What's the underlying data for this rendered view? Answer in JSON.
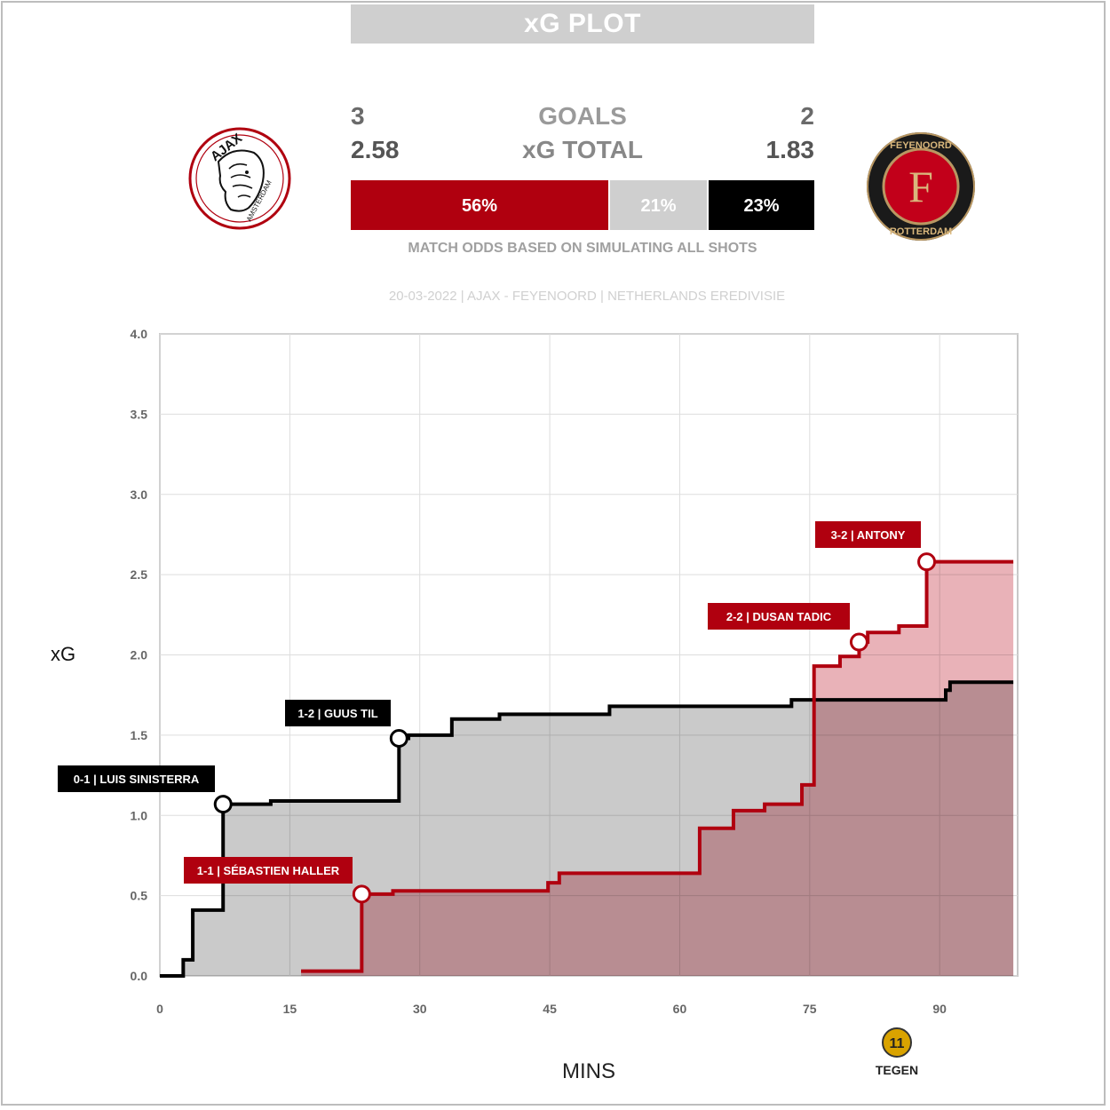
{
  "header": {
    "title": "xG PLOT"
  },
  "teams": {
    "home": {
      "name": "AJAX",
      "logo_text_top": "AJAX",
      "logo_text_ring": "AMSTERDAM",
      "goals": "3",
      "xg_total": "2.58",
      "color": "#b0000f"
    },
    "away": {
      "name": "FEYENOORD",
      "logo_text_top": "FEYENOORD",
      "logo_text_bottom": "ROTTERDAM",
      "logo_letter": "F",
      "goals": "2",
      "xg_total": "1.83",
      "color": "#000000"
    }
  },
  "labels": {
    "goals": "GOALS",
    "xg_total": "xG TOTAL"
  },
  "odds": {
    "home_win": "56%",
    "draw": "21%",
    "away_win": "23%",
    "home_value": 0.56,
    "draw_value": 0.21,
    "away_value": 0.23,
    "caption": "MATCH ODDS BASED ON SIMULATING ALL SHOTS"
  },
  "match_info": "20-03-2022 | AJAX - FEYENOORD | NETHERLANDS EREDIVISIE",
  "brand": {
    "name": "TEGEN",
    "mark": "11"
  },
  "chart_data": {
    "type": "line",
    "xlabel": "MINS",
    "ylabel": "xG",
    "xlim": [
      0,
      99
    ],
    "ylim": [
      0,
      4
    ],
    "x_ticks": [
      "0",
      "15",
      "30",
      "45",
      "60",
      "75",
      "90"
    ],
    "y_ticks": [
      "0.0",
      "0.5",
      "1.0",
      "1.5",
      "2.0",
      "2.5",
      "3.0",
      "3.5",
      "4.0"
    ],
    "grid": true,
    "series": [
      {
        "team": "Feyenoord",
        "color": "#000000",
        "fill": "#bdbdbd",
        "points": [
          [
            0,
            0
          ],
          [
            2.7,
            0.1
          ],
          [
            3.8,
            0.41
          ],
          [
            7.3,
            1.07
          ],
          [
            12.8,
            1.09
          ],
          [
            27.6,
            1.48
          ],
          [
            28.7,
            1.5
          ],
          [
            33.7,
            1.6
          ],
          [
            39.2,
            1.63
          ],
          [
            51.9,
            1.68
          ],
          [
            72.9,
            1.72
          ],
          [
            90.7,
            1.78
          ],
          [
            91.2,
            1.83
          ],
          [
            98.5,
            1.83
          ]
        ]
      },
      {
        "team": "Ajax",
        "color": "#b0000f",
        "fill": "#e49fa6",
        "points": [
          [
            16.3,
            0.03
          ],
          [
            23.3,
            0.51
          ],
          [
            26.9,
            0.53
          ],
          [
            44.8,
            0.58
          ],
          [
            46.1,
            0.64
          ],
          [
            62.3,
            0.92
          ],
          [
            66.2,
            1.03
          ],
          [
            69.8,
            1.07
          ],
          [
            74.1,
            1.19
          ],
          [
            75.5,
            1.93
          ],
          [
            78.5,
            1.99
          ],
          [
            80.7,
            2.08
          ],
          [
            81.7,
            2.14
          ],
          [
            85.3,
            2.18
          ],
          [
            88.5,
            2.58
          ],
          [
            98.5,
            2.58
          ]
        ]
      }
    ],
    "annotations": [
      {
        "label": "0-1 | LUIS SINISTERRA",
        "x": 7.3,
        "y": 1.07,
        "color": "#000000"
      },
      {
        "label": "1-1 | SÉBASTIEN HALLER",
        "x": 23.3,
        "y": 0.51,
        "color": "#b0000f"
      },
      {
        "label": "1-2 | GUUS TIL",
        "x": 27.6,
        "y": 1.48,
        "color": "#000000"
      },
      {
        "label": "2-2 | DUSAN TADIC",
        "x": 80.7,
        "y": 2.08,
        "color": "#b0000f"
      },
      {
        "label": "3-2 | ANTONY",
        "x": 88.5,
        "y": 2.58,
        "color": "#b0000f"
      }
    ]
  }
}
